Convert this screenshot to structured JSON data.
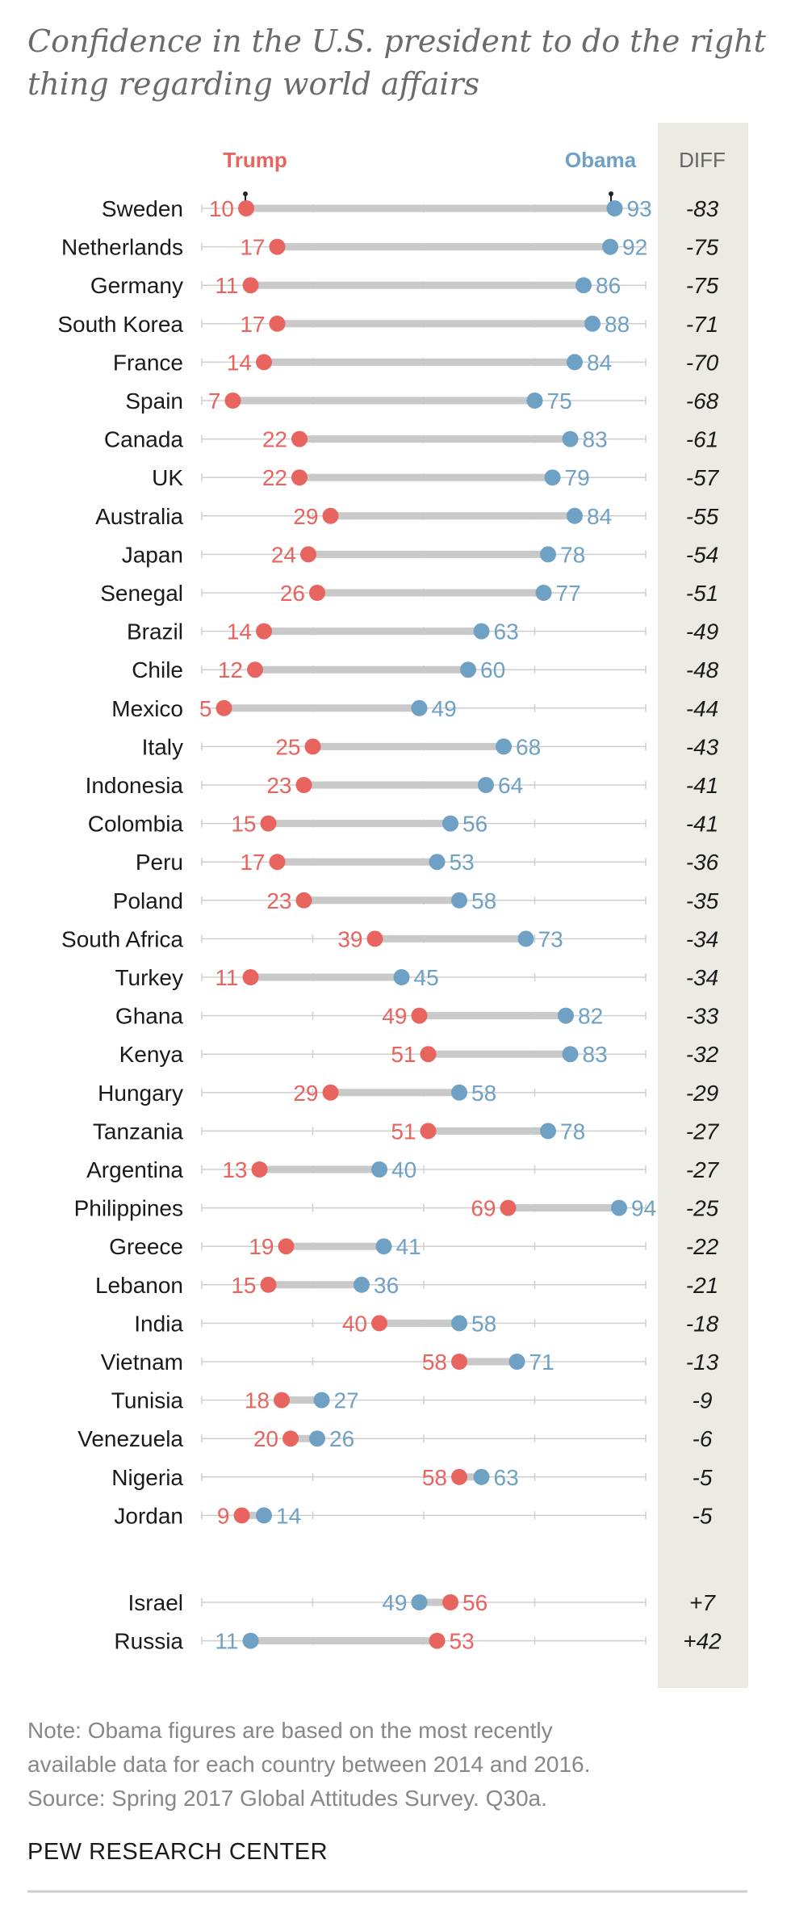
{
  "colors": {
    "trump": "#e8645f",
    "obama": "#6fa1c5",
    "bar": "#c9c9c9",
    "tick": "#cfcfcf",
    "diff_bg": "#ebebe3"
  },
  "chart_data": {
    "type": "dumbbell",
    "title_lines": [
      "Confidence in the U.S. president to do the right",
      "thing regarding world affairs"
    ],
    "series": [
      {
        "name": "Trump"
      },
      {
        "name": "Obama"
      }
    ],
    "diff_label": "DIFF",
    "xlim": [
      0,
      100
    ],
    "rows": [
      {
        "country": "Sweden",
        "trump": 10,
        "obama": 93,
        "diff": "-83"
      },
      {
        "country": "Netherlands",
        "trump": 17,
        "obama": 92,
        "diff": "-75"
      },
      {
        "country": "Germany",
        "trump": 11,
        "obama": 86,
        "diff": "-75"
      },
      {
        "country": "South Korea",
        "trump": 17,
        "obama": 88,
        "diff": "-71"
      },
      {
        "country": "France",
        "trump": 14,
        "obama": 84,
        "diff": "-70"
      },
      {
        "country": "Spain",
        "trump": 7,
        "obama": 75,
        "diff": "-68"
      },
      {
        "country": "Canada",
        "trump": 22,
        "obama": 83,
        "diff": "-61"
      },
      {
        "country": "UK",
        "trump": 22,
        "obama": 79,
        "diff": "-57"
      },
      {
        "country": "Australia",
        "trump": 29,
        "obama": 84,
        "diff": "-55"
      },
      {
        "country": "Japan",
        "trump": 24,
        "obama": 78,
        "diff": "-54"
      },
      {
        "country": "Senegal",
        "trump": 26,
        "obama": 77,
        "diff": "-51"
      },
      {
        "country": "Brazil",
        "trump": 14,
        "obama": 63,
        "diff": "-49"
      },
      {
        "country": "Chile",
        "trump": 12,
        "obama": 60,
        "diff": "-48"
      },
      {
        "country": "Mexico",
        "trump": 5,
        "obama": 49,
        "diff": "-44"
      },
      {
        "country": "Italy",
        "trump": 25,
        "obama": 68,
        "diff": "-43"
      },
      {
        "country": "Indonesia",
        "trump": 23,
        "obama": 64,
        "diff": "-41"
      },
      {
        "country": "Colombia",
        "trump": 15,
        "obama": 56,
        "diff": "-41"
      },
      {
        "country": "Peru",
        "trump": 17,
        "obama": 53,
        "diff": "-36"
      },
      {
        "country": "Poland",
        "trump": 23,
        "obama": 58,
        "diff": "-35"
      },
      {
        "country": "South Africa",
        "trump": 39,
        "obama": 73,
        "diff": "-34"
      },
      {
        "country": "Turkey",
        "trump": 11,
        "obama": 45,
        "diff": "-34"
      },
      {
        "country": "Ghana",
        "trump": 49,
        "obama": 82,
        "diff": "-33"
      },
      {
        "country": "Kenya",
        "trump": 51,
        "obama": 83,
        "diff": "-32"
      },
      {
        "country": "Hungary",
        "trump": 29,
        "obama": 58,
        "diff": "-29"
      },
      {
        "country": "Tanzania",
        "trump": 51,
        "obama": 78,
        "diff": "-27"
      },
      {
        "country": "Argentina",
        "trump": 13,
        "obama": 40,
        "diff": "-27"
      },
      {
        "country": "Philippines",
        "trump": 69,
        "obama": 94,
        "diff": "-25"
      },
      {
        "country": "Greece",
        "trump": 19,
        "obama": 41,
        "diff": "-22"
      },
      {
        "country": "Lebanon",
        "trump": 15,
        "obama": 36,
        "diff": "-21"
      },
      {
        "country": "India",
        "trump": 40,
        "obama": 58,
        "diff": "-18"
      },
      {
        "country": "Vietnam",
        "trump": 58,
        "obama": 71,
        "diff": "-13"
      },
      {
        "country": "Tunisia",
        "trump": 18,
        "obama": 27,
        "diff": "-9"
      },
      {
        "country": "Venezuela",
        "trump": 20,
        "obama": 26,
        "diff": "-6"
      },
      {
        "country": "Nigeria",
        "trump": 58,
        "obama": 63,
        "diff": "-5"
      },
      {
        "country": "Jordan",
        "trump": 9,
        "obama": 14,
        "diff": "-5"
      },
      {
        "country": "Israel",
        "trump": 56,
        "obama": 49,
        "diff": "+7"
      },
      {
        "country": "Russia",
        "trump": 53,
        "obama": 11,
        "diff": "+42"
      }
    ]
  },
  "footer": {
    "note_lines": [
      "Note: Obama figures are based on the most recently",
      "available data for each country between 2014 and 2016.",
      "Source: Spring 2017 Global Attitudes Survey. Q30a."
    ],
    "source": "PEW RESEARCH CENTER"
  }
}
